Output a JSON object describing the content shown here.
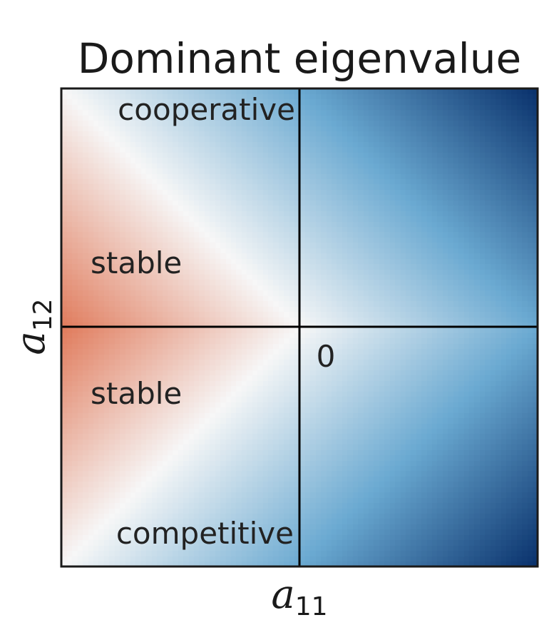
{
  "chart_data": {
    "type": "heatmap",
    "title": "Dominant eigenvalue",
    "xlabel": {
      "symbol": "a",
      "subscript": "11"
    },
    "ylabel": {
      "symbol": "a",
      "subscript": "12"
    },
    "origin_label": "0",
    "regions": [
      {
        "label": "cooperative"
      },
      {
        "label": "stable"
      },
      {
        "label": "stable"
      },
      {
        "label": "competitive"
      }
    ],
    "colormap": "diverging red-white-blue",
    "colors": {
      "low": "#67001f",
      "mid_low": "#e07b5c",
      "zero": "#f7f7f7",
      "mid_high": "#6aa9d1",
      "high": "#08306b"
    },
    "grid": false,
    "zero_lines": true
  }
}
